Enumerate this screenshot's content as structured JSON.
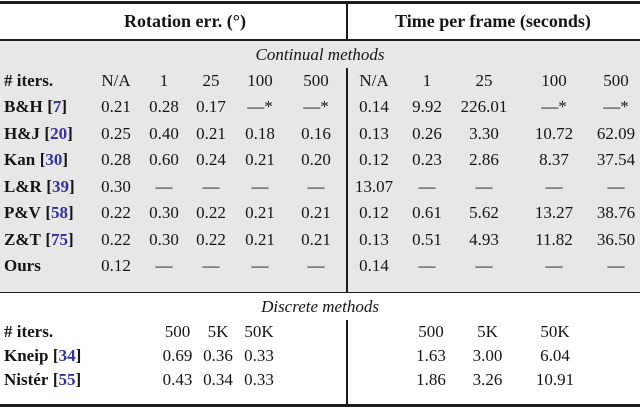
{
  "table": {
    "header": {
      "left_title": "Rotation err. (°)",
      "right_title": "Time per frame (seconds)"
    },
    "brackets": {
      "open": "[",
      "close": "]"
    },
    "colors": {
      "section_background": "#e7e7e7",
      "citation_blue": "#32329f",
      "rule_black": "#1c1c1c"
    },
    "sections": [
      {
        "id": "continual",
        "title": "Continual methods",
        "iters_label": "# iters.",
        "col_headers": [
          "N/A",
          "1",
          "25",
          "100",
          "500"
        ],
        "rows": [
          {
            "name": "B&H",
            "cite": "7",
            "rot": [
              "0.21",
              "0.28",
              "0.17",
              "—*",
              "—*"
            ],
            "time": [
              "0.14",
              "9.92",
              "226.01",
              "—*",
              "—*"
            ]
          },
          {
            "name": "H&J",
            "cite": "20",
            "rot": [
              "0.25",
              "0.40",
              "0.21",
              "0.18",
              "0.16"
            ],
            "time": [
              "0.13",
              "0.26",
              "3.30",
              "10.72",
              "62.09"
            ]
          },
          {
            "name": "Kan",
            "cite": "30",
            "rot": [
              "0.28",
              "0.60",
              "0.24",
              "0.21",
              "0.20"
            ],
            "time": [
              "0.12",
              "0.23",
              "2.86",
              "8.37",
              "37.54"
            ]
          },
          {
            "name": "L&R",
            "cite": "39",
            "rot": [
              "0.30",
              "—",
              "—",
              "—",
              "—"
            ],
            "time": [
              "13.07",
              "—",
              "—",
              "—",
              "—"
            ]
          },
          {
            "name": "P&V",
            "cite": "58",
            "rot": [
              "0.22",
              "0.30",
              "0.22",
              "0.21",
              "0.21"
            ],
            "time": [
              "0.12",
              "0.61",
              "5.62",
              "13.27",
              "38.76"
            ]
          },
          {
            "name": "Z&T",
            "cite": "75",
            "rot": [
              "0.22",
              "0.30",
              "0.22",
              "0.21",
              "0.21"
            ],
            "time": [
              "0.13",
              "0.51",
              "4.93",
              "11.82",
              "36.50"
            ]
          },
          {
            "name": "Ours",
            "cite": null,
            "rot": [
              "0.12",
              "—",
              "—",
              "—",
              "—"
            ],
            "time": [
              "0.14",
              "—",
              "—",
              "—",
              "—"
            ]
          }
        ]
      },
      {
        "id": "discrete",
        "title": "Discrete methods",
        "iters_label": "# iters.",
        "col_headers": [
          "500",
          "5K",
          "50K"
        ],
        "rows": [
          {
            "name": "Kneip",
            "cite": "34",
            "rot": [
              "0.69",
              "0.36",
              "0.33"
            ],
            "time": [
              "1.63",
              "3.00",
              "6.04"
            ]
          },
          {
            "name": "Nistér",
            "cite": "55",
            "rot": [
              "0.43",
              "0.34",
              "0.33"
            ],
            "time": [
              "1.86",
              "3.26",
              "10.91"
            ]
          }
        ]
      }
    ]
  }
}
